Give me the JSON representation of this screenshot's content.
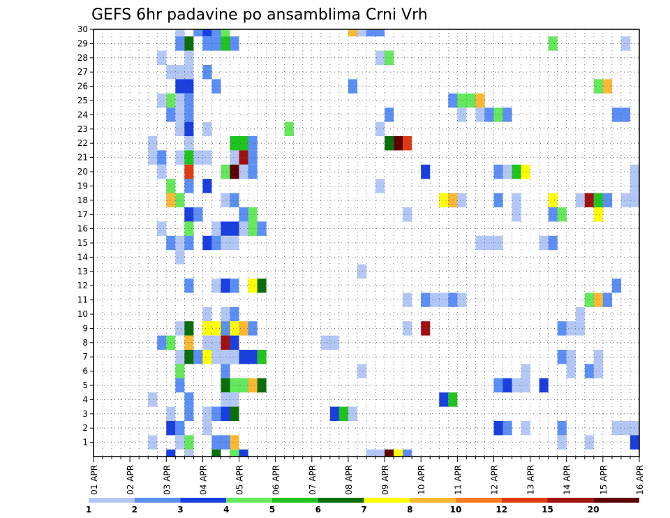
{
  "chart_data": {
    "type": "heatmap",
    "title": "GEFS 6hr padavine po ansamblima Crni Vrh",
    "xlabel": "",
    "ylabel": "",
    "x_tick_labels": [
      "01 APR",
      "02 APR",
      "03 APR",
      "04 APR",
      "05 APR",
      "06 APR",
      "07 APR",
      "08 APR",
      "09 APR",
      "10 APR",
      "11 APR",
      "12 APR",
      "13 APR",
      "14 APR",
      "15 APR",
      "16 APR"
    ],
    "y_tick_labels": [
      "1",
      "2",
      "3",
      "4",
      "5",
      "6",
      "7",
      "8",
      "9",
      "10",
      "11",
      "12",
      "13",
      "14",
      "15",
      "16",
      "17",
      "18",
      "19",
      "20",
      "21",
      "22",
      "23",
      "24",
      "25",
      "26",
      "27",
      "28",
      "29",
      "30"
    ],
    "x_time_step_hours": 6,
    "x_range_days": [
      0,
      15
    ],
    "y_range": [
      0,
      30
    ],
    "grid": "dotted",
    "colorbar": {
      "labels": [
        "1",
        "2",
        "3",
        "4",
        "5",
        "6",
        "7",
        "8",
        "10",
        "12",
        "15",
        "20"
      ],
      "colors": [
        "#b3c7f7",
        "#5b8ff5",
        "#1a3fe0",
        "#64e85c",
        "#1fc41f",
        "#0b6e0b",
        "#ffff00",
        "#ffb833",
        "#ff7a1a",
        "#e03a14",
        "#a01010",
        "#5c0000"
      ]
    },
    "color_levels": {
      "1": "#b3c7f7",
      "2": "#5b8ff5",
      "3": "#1a3fe0",
      "4": "#64e85c",
      "5": "#1fc41f",
      "6": "#0b6e0b",
      "7": "#ffff00",
      "8": "#ffb833",
      "10": "#ff7a1a",
      "12": "#e03a14",
      "15": "#a01010",
      "20": "#5c0000"
    },
    "cells_note": "each cell: [member, start_time_step, end_time_step, level]",
    "cells": [
      [
        30,
        9,
        10,
        1
      ],
      [
        30,
        11,
        12,
        2
      ],
      [
        30,
        12,
        13,
        3
      ],
      [
        30,
        13,
        14,
        2
      ],
      [
        30,
        14,
        15,
        4
      ],
      [
        30,
        28,
        29,
        8
      ],
      [
        30,
        29,
        30,
        1
      ],
      [
        30,
        30,
        32,
        2
      ],
      [
        29,
        9,
        10,
        2
      ],
      [
        29,
        10,
        11,
        6
      ],
      [
        29,
        12,
        14,
        2
      ],
      [
        29,
        14,
        15,
        5
      ],
      [
        29,
        15,
        16,
        2
      ],
      [
        29,
        50,
        51,
        4
      ],
      [
        29,
        58,
        59,
        1
      ],
      [
        28,
        7,
        8,
        1
      ],
      [
        28,
        10,
        11,
        1
      ],
      [
        28,
        31,
        32,
        1
      ],
      [
        28,
        32,
        33,
        4
      ],
      [
        27,
        8,
        10,
        1
      ],
      [
        27,
        10,
        11,
        1
      ],
      [
        27,
        12,
        13,
        2
      ],
      [
        26,
        9,
        11,
        3
      ],
      [
        26,
        13,
        14,
        2
      ],
      [
        26,
        28,
        29,
        2
      ],
      [
        26,
        55,
        56,
        4
      ],
      [
        26,
        56,
        57,
        8
      ],
      [
        25,
        7,
        8,
        1
      ],
      [
        25,
        8,
        9,
        4
      ],
      [
        25,
        9,
        10,
        1
      ],
      [
        25,
        10,
        11,
        2
      ],
      [
        25,
        39,
        40,
        2
      ],
      [
        25,
        40,
        42,
        4
      ],
      [
        25,
        42,
        43,
        8
      ],
      [
        24,
        8,
        9,
        2
      ],
      [
        24,
        9,
        10,
        1
      ],
      [
        24,
        10,
        11,
        2
      ],
      [
        24,
        32,
        33,
        2
      ],
      [
        24,
        40,
        41,
        1
      ],
      [
        24,
        42,
        43,
        1
      ],
      [
        24,
        43,
        44,
        2
      ],
      [
        24,
        44,
        45,
        4
      ],
      [
        24,
        45,
        46,
        2
      ],
      [
        24,
        57,
        59,
        2
      ],
      [
        23,
        9,
        10,
        1
      ],
      [
        23,
        10,
        11,
        3
      ],
      [
        23,
        12,
        13,
        1
      ],
      [
        23,
        21,
        22,
        4
      ],
      [
        23,
        31,
        32,
        1
      ],
      [
        22,
        6,
        7,
        1
      ],
      [
        22,
        10,
        11,
        1
      ],
      [
        22,
        15,
        17,
        5
      ],
      [
        22,
        17,
        18,
        2
      ],
      [
        22,
        32,
        33,
        6
      ],
      [
        22,
        33,
        34,
        20
      ],
      [
        22,
        34,
        35,
        12
      ],
      [
        21,
        6,
        7,
        1
      ],
      [
        21,
        7,
        8,
        2
      ],
      [
        21,
        9,
        10,
        1
      ],
      [
        21,
        10,
        11,
        5
      ],
      [
        21,
        11,
        13,
        1
      ],
      [
        21,
        15,
        16,
        1
      ],
      [
        21,
        16,
        17,
        15
      ],
      [
        21,
        17,
        18,
        2
      ],
      [
        20,
        7,
        8,
        1
      ],
      [
        20,
        10,
        11,
        12
      ],
      [
        20,
        14,
        15,
        4
      ],
      [
        20,
        15,
        16,
        20
      ],
      [
        20,
        16,
        17,
        1
      ],
      [
        20,
        17,
        18,
        2
      ],
      [
        20,
        36,
        37,
        3
      ],
      [
        20,
        44,
        45,
        2
      ],
      [
        20,
        45,
        46,
        1
      ],
      [
        20,
        46,
        47,
        5
      ],
      [
        20,
        47,
        48,
        7
      ],
      [
        20,
        59,
        60,
        1
      ],
      [
        19,
        8,
        9,
        4
      ],
      [
        19,
        10,
        11,
        2
      ],
      [
        19,
        12,
        13,
        3
      ],
      [
        19,
        31,
        32,
        1
      ],
      [
        19,
        59,
        60,
        1
      ],
      [
        18,
        8,
        9,
        8
      ],
      [
        18,
        9,
        10,
        4
      ],
      [
        18,
        14,
        15,
        1
      ],
      [
        18,
        15,
        16,
        2
      ],
      [
        18,
        38,
        39,
        7
      ],
      [
        18,
        39,
        40,
        8
      ],
      [
        18,
        40,
        41,
        1
      ],
      [
        18,
        44,
        45,
        2
      ],
      [
        18,
        46,
        47,
        1
      ],
      [
        18,
        50,
        51,
        7
      ],
      [
        18,
        53,
        54,
        1
      ],
      [
        18,
        54,
        55,
        15
      ],
      [
        18,
        55,
        56,
        5
      ],
      [
        18,
        56,
        57,
        2
      ],
      [
        18,
        58,
        59,
        1
      ],
      [
        18,
        59,
        60,
        1
      ],
      [
        17,
        10,
        11,
        3
      ],
      [
        17,
        11,
        12,
        2
      ],
      [
        17,
        16,
        17,
        2
      ],
      [
        17,
        17,
        18,
        4
      ],
      [
        17,
        34,
        35,
        1
      ],
      [
        17,
        46,
        47,
        1
      ],
      [
        17,
        50,
        51,
        2
      ],
      [
        17,
        51,
        52,
        4
      ],
      [
        17,
        55,
        56,
        7
      ],
      [
        16,
        7,
        8,
        1
      ],
      [
        16,
        10,
        11,
        4
      ],
      [
        16,
        13,
        14,
        1
      ],
      [
        16,
        14,
        16,
        3
      ],
      [
        16,
        16,
        17,
        1
      ],
      [
        16,
        17,
        18,
        4
      ],
      [
        16,
        18,
        19,
        2
      ],
      [
        15,
        8,
        9,
        2
      ],
      [
        15,
        9,
        10,
        1
      ],
      [
        15,
        10,
        11,
        2
      ],
      [
        15,
        12,
        13,
        3
      ],
      [
        15,
        13,
        14,
        2
      ],
      [
        15,
        14,
        16,
        1
      ],
      [
        15,
        42,
        45,
        1
      ],
      [
        15,
        49,
        50,
        1
      ],
      [
        15,
        50,
        51,
        2
      ],
      [
        14,
        9,
        10,
        1
      ],
      [
        13,
        29,
        30,
        1
      ],
      [
        12,
        10,
        11,
        2
      ],
      [
        12,
        13,
        14,
        1
      ],
      [
        12,
        14,
        15,
        3
      ],
      [
        12,
        15,
        16,
        2
      ],
      [
        12,
        17,
        18,
        7
      ],
      [
        12,
        18,
        19,
        6
      ],
      [
        12,
        57,
        58,
        2
      ],
      [
        11,
        34,
        35,
        1
      ],
      [
        11,
        36,
        37,
        2
      ],
      [
        11,
        37,
        39,
        1
      ],
      [
        11,
        39,
        40,
        2
      ],
      [
        11,
        40,
        41,
        1
      ],
      [
        11,
        54,
        55,
        4
      ],
      [
        11,
        55,
        56,
        8
      ],
      [
        11,
        56,
        57,
        2
      ],
      [
        10,
        12,
        13,
        1
      ],
      [
        10,
        14,
        15,
        1
      ],
      [
        10,
        15,
        16,
        2
      ],
      [
        10,
        53,
        54,
        1
      ],
      [
        9,
        9,
        10,
        1
      ],
      [
        9,
        10,
        11,
        6
      ],
      [
        9,
        12,
        14,
        7
      ],
      [
        9,
        14,
        15,
        2
      ],
      [
        9,
        15,
        16,
        7
      ],
      [
        9,
        16,
        17,
        8
      ],
      [
        9,
        17,
        18,
        2
      ],
      [
        9,
        34,
        35,
        1
      ],
      [
        9,
        36,
        37,
        15
      ],
      [
        9,
        51,
        52,
        2
      ],
      [
        9,
        52,
        54,
        1
      ],
      [
        8,
        7,
        8,
        2
      ],
      [
        8,
        8,
        9,
        4
      ],
      [
        8,
        10,
        11,
        8
      ],
      [
        8,
        12,
        14,
        1
      ],
      [
        8,
        14,
        15,
        15
      ],
      [
        8,
        15,
        16,
        3
      ],
      [
        8,
        25,
        27,
        1
      ],
      [
        7,
        9,
        10,
        1
      ],
      [
        7,
        10,
        11,
        6
      ],
      [
        7,
        11,
        12,
        2
      ],
      [
        7,
        12,
        13,
        7
      ],
      [
        7,
        13,
        14,
        1
      ],
      [
        7,
        14,
        16,
        1
      ],
      [
        7,
        16,
        18,
        3
      ],
      [
        7,
        18,
        19,
        5
      ],
      [
        7,
        51,
        52,
        2
      ],
      [
        7,
        52,
        53,
        1
      ],
      [
        7,
        55,
        56,
        1
      ],
      [
        6,
        9,
        10,
        4
      ],
      [
        6,
        14,
        15,
        2
      ],
      [
        6,
        29,
        30,
        1
      ],
      [
        6,
        47,
        48,
        1
      ],
      [
        6,
        52,
        53,
        1
      ],
      [
        6,
        54,
        55,
        2
      ],
      [
        6,
        55,
        56,
        1
      ],
      [
        5,
        9,
        10,
        2
      ],
      [
        5,
        14,
        15,
        6
      ],
      [
        5,
        15,
        17,
        4
      ],
      [
        5,
        17,
        18,
        8
      ],
      [
        5,
        18,
        19,
        6
      ],
      [
        5,
        44,
        45,
        2
      ],
      [
        5,
        45,
        46,
        3
      ],
      [
        5,
        46,
        48,
        1
      ],
      [
        5,
        49,
        50,
        3
      ],
      [
        4,
        6,
        7,
        1
      ],
      [
        4,
        10,
        11,
        2
      ],
      [
        4,
        14,
        16,
        1
      ],
      [
        4,
        38,
        39,
        3
      ],
      [
        4,
        39,
        40,
        5
      ],
      [
        3,
        8,
        9,
        1
      ],
      [
        3,
        10,
        11,
        2
      ],
      [
        3,
        12,
        13,
        1
      ],
      [
        3,
        13,
        14,
        2
      ],
      [
        3,
        14,
        15,
        3
      ],
      [
        3,
        15,
        16,
        6
      ],
      [
        3,
        26,
        27,
        3
      ],
      [
        3,
        27,
        28,
        5
      ],
      [
        3,
        28,
        29,
        1
      ],
      [
        2,
        8,
        9,
        3
      ],
      [
        2,
        9,
        10,
        2
      ],
      [
        2,
        12,
        13,
        1
      ],
      [
        2,
        44,
        45,
        3
      ],
      [
        2,
        45,
        46,
        2
      ],
      [
        2,
        47,
        48,
        1
      ],
      [
        2,
        51,
        52,
        2
      ],
      [
        2,
        57,
        60,
        1
      ],
      [
        1,
        6,
        7,
        1
      ],
      [
        1,
        9,
        10,
        1
      ],
      [
        1,
        10,
        11,
        4
      ],
      [
        1,
        13,
        15,
        2
      ],
      [
        1,
        15,
        16,
        8
      ],
      [
        1,
        51,
        52,
        1
      ],
      [
        1,
        54,
        55,
        1
      ],
      [
        1,
        59,
        60,
        3
      ],
      [
        0,
        8,
        9,
        3
      ],
      [
        0,
        10,
        11,
        1
      ],
      [
        0,
        13,
        14,
        6
      ],
      [
        0,
        15,
        16,
        4
      ],
      [
        0,
        16,
        17,
        3
      ],
      [
        0,
        30,
        32,
        1
      ],
      [
        0,
        32,
        33,
        20
      ],
      [
        0,
        33,
        34,
        7
      ],
      [
        0,
        34,
        35,
        2
      ]
    ]
  }
}
